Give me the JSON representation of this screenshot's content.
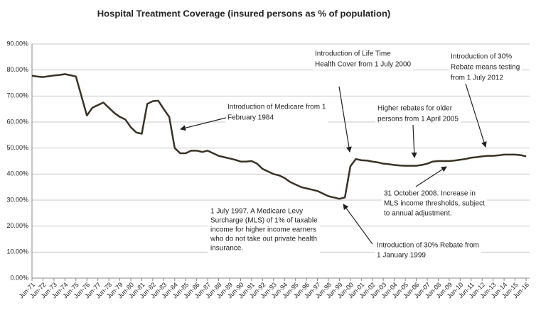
{
  "chart_data": {
    "type": "line",
    "title": "Hospital Treatment Coverage (insured persons as % of population)",
    "categories": [
      "Jun-71",
      null,
      "Jun-72",
      null,
      "Jun-73",
      null,
      "Jun-74",
      null,
      "Jun-75",
      null,
      "Jun-76",
      null,
      "Jun-77",
      null,
      "Jun-78",
      null,
      "Jun-79",
      null,
      "Jun-80",
      null,
      "Jun-81",
      null,
      "Jun-82",
      null,
      "Jun-83",
      null,
      "Jun-84",
      null,
      "Jun-85",
      null,
      "Jun-86",
      null,
      "Jun-87",
      null,
      "Jun-88",
      null,
      "Jun-89",
      null,
      "Jun-90",
      null,
      "Jun-91",
      null,
      "Jun-92",
      null,
      "Jun-93",
      null,
      "Jun-94",
      null,
      "Jun-95",
      null,
      "Jun-96",
      null,
      "Jun-97",
      null,
      "Jun-98",
      null,
      "Jun-99",
      null,
      "Jun-00",
      null,
      "Jun-01",
      null,
      "Jun-02",
      null,
      "Jun-03",
      null,
      "Jun-04",
      null,
      "Jun-05",
      null,
      "Jun-06",
      null,
      "Jun-07",
      null,
      "Jun-08",
      null,
      "Jun-09",
      null,
      "Jun-10",
      null,
      "Jun-11",
      null,
      "Jun-12",
      null,
      "Jun-13",
      null,
      "Jun-14",
      null,
      "Jun-15",
      null,
      "Jun-16"
    ],
    "series": [
      {
        "name": "Hospital Treatment Coverage",
        "color": "#3a3226",
        "values": [
          77.8,
          77.5,
          77.3,
          77.6,
          77.9,
          78.1,
          78.4,
          78.0,
          77.5,
          70,
          62.5,
          65.5,
          66.5,
          67.5,
          65.5,
          63.5,
          62,
          61,
          58,
          56,
          55.5,
          67,
          68,
          68.2,
          65,
          62,
          50,
          48,
          48,
          49,
          49,
          48.5,
          49,
          48,
          47,
          46.5,
          46,
          45.5,
          44.8,
          44.8,
          45,
          44,
          42,
          41,
          40,
          39.5,
          38.5,
          37,
          36,
          35,
          34.5,
          34,
          33.5,
          32.5,
          31.5,
          31,
          30.5,
          31,
          43,
          45.8,
          45.3,
          45.2,
          44.8,
          44.5,
          44,
          43.8,
          43.5,
          43.3,
          43.2,
          43.2,
          43.2,
          43.5,
          44,
          44.8,
          45,
          45,
          45,
          45.2,
          45.5,
          45.8,
          46.3,
          46.5,
          46.8,
          47,
          47,
          47.2,
          47.5,
          47.5,
          47.5,
          47.3,
          46.8
        ]
      }
    ],
    "ylim": [
      0,
      90
    ],
    "yticks": [
      {
        "value": 0,
        "label": "0.00%"
      },
      {
        "value": 10,
        "label": "10.00%"
      },
      {
        "value": 20,
        "label": "20.00%"
      },
      {
        "value": 30,
        "label": "30.00%"
      },
      {
        "value": 40,
        "label": "40.00%"
      },
      {
        "value": 50,
        "label": "50.00%"
      },
      {
        "value": 60,
        "label": "60.00%"
      },
      {
        "value": 70,
        "label": "70.00%"
      },
      {
        "value": 80,
        "label": "80.00%"
      },
      {
        "value": 90,
        "label": "90.00%"
      }
    ],
    "grid": true,
    "annotations": [
      [
        "Introduction  of Medicare from 1",
        "February 1984"
      ],
      [
        "Introduction  of Life Time",
        "Health Cover from 1 July 2000"
      ],
      [
        "Introduction of 30%",
        "Rebate means testing",
        "from 1 July 2012"
      ],
      [
        "Higher rebates for older",
        "persons from 1 April 2005"
      ],
      [
        "31 October 2008. Increase in",
        "MLS income thresholds, subject",
        "to annual adjustment."
      ],
      [
        "1 July 1997. A Medicare Levy",
        "Surcharge (MLS) of 1% of taxable",
        "income for higher income earners",
        "who do not take out private health",
        "insurance."
      ],
      [
        "Introduction of 30% Rebate from",
        "1 January 1999"
      ]
    ]
  }
}
